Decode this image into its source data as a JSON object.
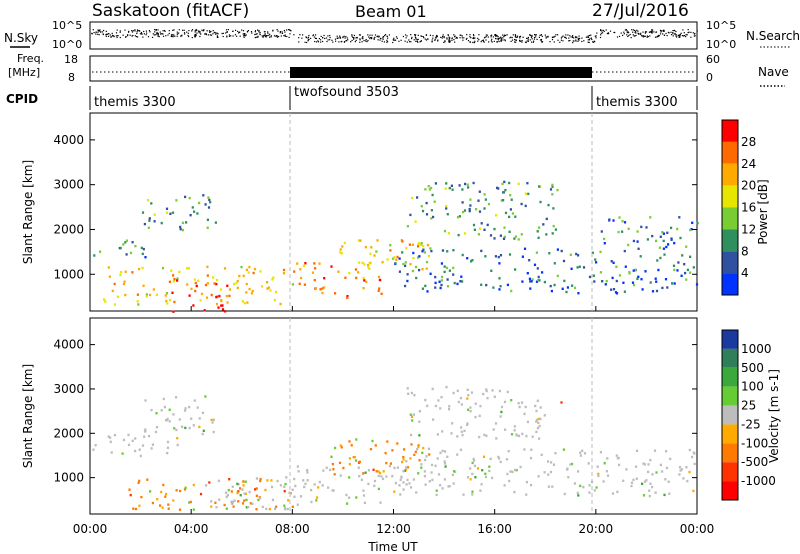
{
  "header": {
    "station": "Saskatoon (fitACF)",
    "beam": "Beam 01",
    "date": "27/Jul/2016"
  },
  "noise_panel": {
    "left_label": "N.Sky",
    "right_label": "N.Search",
    "left_ticks": [
      "10^5",
      "10^0"
    ],
    "right_ticks": [
      "10^5",
      "10^0"
    ]
  },
  "freq_panel": {
    "left_label_line1": "Freq.",
    "left_label_line2": "[MHz]",
    "right_label": "Nave",
    "left_ticks": [
      "18",
      "8"
    ],
    "right_ticks": [
      "60",
      "0"
    ]
  },
  "cpid": {
    "label": "CPID",
    "segments": [
      {
        "name": "themis 3300",
        "start_hour": 0,
        "end_hour": 8
      },
      {
        "name": "twofsound 3503",
        "start_hour": 8,
        "end_hour": 20
      },
      {
        "name": "themis 3300",
        "start_hour": 20,
        "end_hour": 24
      }
    ]
  },
  "time_axis": {
    "label": "Time UT",
    "ticks": [
      "00:00",
      "04:00",
      "08:00",
      "12:00",
      "16:00",
      "20:00",
      "00:00"
    ]
  },
  "power_colorbar": {
    "label": "Power [dB]",
    "ticks": [
      "28",
      "24",
      "20",
      "16",
      "12",
      "8",
      "4"
    ],
    "colors": [
      "#ff0000",
      "#ff6a00",
      "#ffaa00",
      "#e6e600",
      "#7acc33",
      "#2f8f5f",
      "#3050a0",
      "#0033ff"
    ]
  },
  "velocity_colorbar": {
    "label": "Velocity [m s-1]",
    "ticks": [
      "1000",
      "500",
      "100",
      "25",
      "-25",
      "-100",
      "-500",
      "-1000"
    ],
    "colors": [
      "#1a3aa0",
      "#2e7f5a",
      "#3aa83a",
      "#66cc33",
      "#bdbdbd",
      "#ffaa00",
      "#ff7a00",
      "#ff3300",
      "#ff0000"
    ]
  },
  "chart_data": {
    "type": "heatmap",
    "title": "Saskatoon (fitACF) Beam 01 27/Jul/2016",
    "xlabel": "Time UT",
    "ylabel": "Slant Range [km]",
    "xlim_hours": [
      0,
      24
    ],
    "ylim_km": [
      180,
      4600
    ],
    "yticks_km": [
      1000,
      2000,
      3000,
      4000
    ],
    "panels": [
      {
        "name": "Power",
        "unit": "dB",
        "scatter_regions": [
          {
            "t_start": 0.0,
            "t_end": 2.5,
            "r_low": 1400,
            "r_high": 1800,
            "level": 8
          },
          {
            "t_start": 2.0,
            "t_end": 5.0,
            "r_low": 2000,
            "r_high": 2800,
            "level": 10
          },
          {
            "t_start": 0.5,
            "t_end": 8.0,
            "r_low": 350,
            "r_high": 1200,
            "level": 18
          },
          {
            "t_start": 3.0,
            "t_end": 5.5,
            "r_low": 500,
            "r_high": 900,
            "level": 28
          },
          {
            "t_start": 3.0,
            "t_end": 6.0,
            "r_low": 180,
            "r_high": 350,
            "level": 30
          },
          {
            "t_start": 8.0,
            "t_end": 11.5,
            "r_low": 500,
            "r_high": 1300,
            "level": 22
          },
          {
            "t_start": 9.5,
            "t_end": 13.5,
            "r_low": 1000,
            "r_high": 1800,
            "level": 18
          },
          {
            "t_start": 12.5,
            "t_end": 18.5,
            "r_low": 1800,
            "r_high": 3100,
            "level": 10
          },
          {
            "t_start": 12.0,
            "t_end": 24.0,
            "r_low": 600,
            "r_high": 1600,
            "level": 7
          },
          {
            "t_start": 20.0,
            "t_end": 24.0,
            "r_low": 1600,
            "r_high": 2300,
            "level": 8
          }
        ]
      },
      {
        "name": "Velocity",
        "unit": "m s-1",
        "scatter_regions": [
          {
            "t_start": 0.0,
            "t_end": 3.5,
            "r_low": 1500,
            "r_high": 2000,
            "level": 0
          },
          {
            "t_start": 2.0,
            "t_end": 5.0,
            "r_low": 2000,
            "r_high": 2900,
            "level": 0
          },
          {
            "t_start": 1.5,
            "t_end": 8.0,
            "r_low": 300,
            "r_high": 1000,
            "level": -150
          },
          {
            "t_start": 4.5,
            "t_end": 8.0,
            "r_low": 300,
            "r_high": 1100,
            "level": 0
          },
          {
            "t_start": 8.0,
            "t_end": 12.0,
            "r_low": 400,
            "r_high": 1300,
            "level": 0
          },
          {
            "t_start": 9.5,
            "t_end": 13.5,
            "r_low": 1100,
            "r_high": 1900,
            "level": -300
          },
          {
            "t_start": 12.5,
            "t_end": 18.0,
            "r_low": 1900,
            "r_high": 3100,
            "level": 0
          },
          {
            "t_start": 18.0,
            "t_end": 18.6,
            "r_low": 2700,
            "r_high": 2850,
            "level": -200
          },
          {
            "t_start": 12.0,
            "t_end": 24.0,
            "r_low": 600,
            "r_high": 1700,
            "level": 0
          }
        ]
      }
    ]
  }
}
